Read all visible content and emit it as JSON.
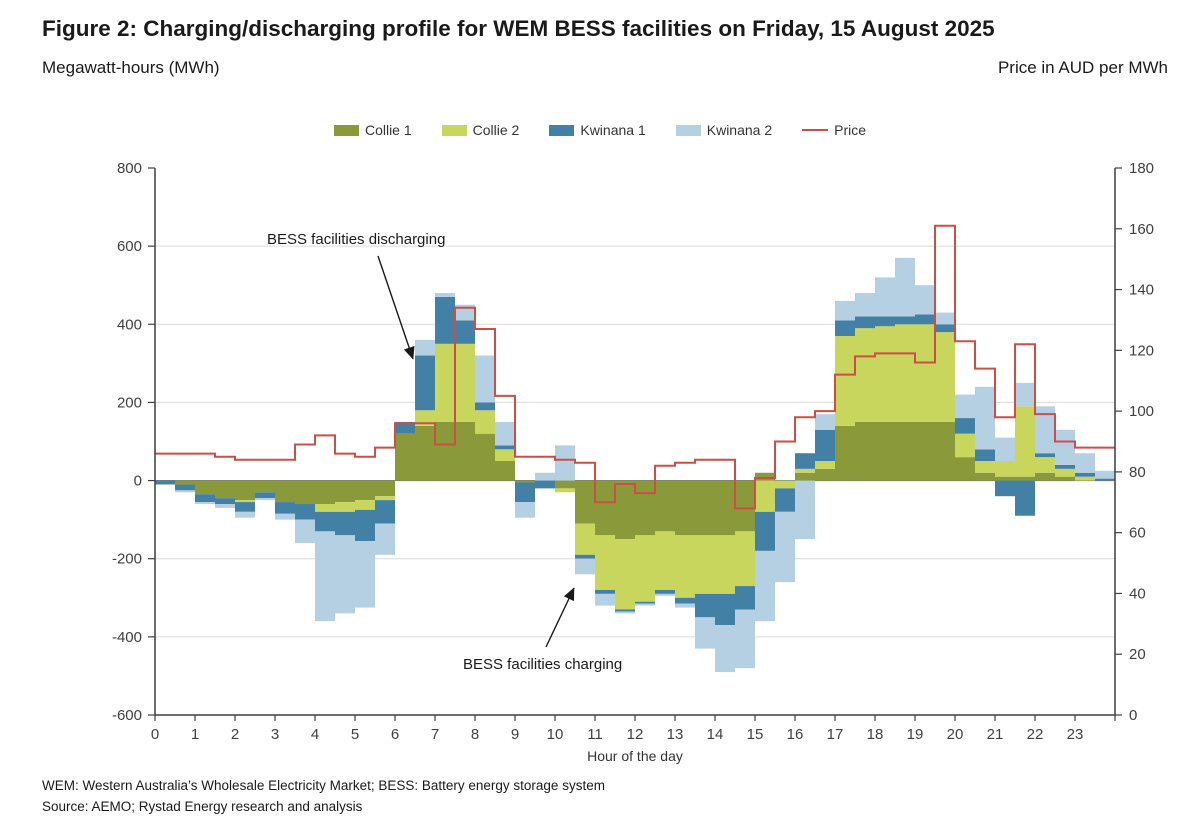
{
  "figure": {
    "title": "Figure 2: Charging/discharging profile for WEM BESS facilities on Friday, 15 August 2025",
    "subtitle_left": "Megawatt-hours (MWh)",
    "subtitle_right": "Price in AUD per MWh",
    "footnote_line1": "WEM: Western Australia’s Wholesale Electricity Market; BESS: Battery energy storage system",
    "footnote_line2": "Source: AEMO; Rystad Energy research and analysis"
  },
  "annotations": {
    "discharging": "BESS facilities discharging",
    "charging": "BESS facilities charging"
  },
  "chart_data": {
    "type": "bar",
    "stacked": true,
    "title": "Figure 2: Charging/discharging profile for WEM BESS facilities on Friday, 15 August 2025",
    "xlabel": "Hour of the day",
    "ylabel_left": "Megawatt-hours (MWh)",
    "ylabel_right": "Price in AUD per MWh",
    "interval_hours": 0.5,
    "x": [
      0,
      0.5,
      1,
      1.5,
      2,
      2.5,
      3,
      3.5,
      4,
      4.5,
      5,
      5.5,
      6,
      6.5,
      7,
      7.5,
      8,
      8.5,
      9,
      9.5,
      10,
      10.5,
      11,
      11.5,
      12,
      12.5,
      13,
      13.5,
      14,
      14.5,
      15,
      15.5,
      16,
      16.5,
      17,
      17.5,
      18,
      18.5,
      19,
      19.5,
      20,
      20.5,
      21,
      21.5,
      22,
      22.5,
      23,
      23.5
    ],
    "xticks": [
      0,
      1,
      2,
      3,
      4,
      5,
      6,
      7,
      8,
      9,
      10,
      11,
      12,
      13,
      14,
      15,
      16,
      17,
      18,
      19,
      20,
      21,
      22,
      23
    ],
    "ylim_left": [
      -600,
      800
    ],
    "yticks_left": [
      800,
      600,
      400,
      200,
      0,
      -200,
      -400,
      -600
    ],
    "ylim_right": [
      0,
      180
    ],
    "yticks_right": [
      180,
      160,
      140,
      120,
      100,
      80,
      60,
      40,
      20,
      0
    ],
    "grid": "horizontal",
    "legend_position": "top",
    "series": [
      {
        "name": "Collie 1",
        "color": "#8a9a3b",
        "values": [
          0,
          -10,
          -35,
          -45,
          -50,
          -30,
          -55,
          -60,
          -60,
          -55,
          -50,
          -40,
          120,
          140,
          150,
          150,
          120,
          50,
          -5,
          0,
          -20,
          -110,
          -140,
          -150,
          -140,
          -130,
          -140,
          -140,
          -140,
          -130,
          20,
          0,
          20,
          30,
          140,
          150,
          150,
          150,
          150,
          150,
          60,
          20,
          10,
          10,
          20,
          10,
          0,
          0
        ]
      },
      {
        "name": "Collie 2",
        "color": "#c8d65e",
        "values": [
          0,
          0,
          0,
          0,
          -5,
          0,
          0,
          0,
          -20,
          -25,
          -25,
          -10,
          0,
          40,
          200,
          200,
          60,
          30,
          0,
          0,
          -10,
          -80,
          -140,
          -180,
          -170,
          -150,
          -160,
          -150,
          -150,
          -140,
          -80,
          -20,
          10,
          20,
          230,
          240,
          245,
          250,
          250,
          230,
          60,
          30,
          40,
          180,
          40,
          20,
          10,
          0
        ]
      },
      {
        "name": "Kwinana 1",
        "color": "#4380a6",
        "values": [
          -10,
          -15,
          -20,
          -15,
          -25,
          -15,
          -30,
          -40,
          -50,
          -60,
          -80,
          -60,
          30,
          140,
          120,
          60,
          20,
          10,
          -50,
          -20,
          0,
          -10,
          -10,
          -5,
          -5,
          -10,
          -15,
          -60,
          -80,
          -60,
          -100,
          -60,
          40,
          80,
          40,
          30,
          25,
          20,
          25,
          20,
          40,
          30,
          -40,
          -90,
          10,
          10,
          10,
          5
        ]
      },
      {
        "name": "Kwinana 2",
        "color": "#b5cfe3",
        "values": [
          0,
          -5,
          -5,
          -10,
          -15,
          -5,
          -15,
          -60,
          -230,
          -200,
          -170,
          -80,
          0,
          40,
          10,
          40,
          120,
          60,
          -40,
          20,
          90,
          -40,
          -30,
          -5,
          -5,
          -5,
          -10,
          -80,
          -120,
          -150,
          -180,
          -180,
          -150,
          40,
          50,
          60,
          100,
          150,
          75,
          30,
          60,
          160,
          60,
          60,
          120,
          90,
          50,
          20
        ]
      }
    ],
    "price": {
      "name": "Price",
      "color": "#cb4f47",
      "axis": "right",
      "values": [
        86,
        86,
        86,
        85,
        84,
        84,
        84,
        89,
        92,
        86,
        85,
        88,
        96,
        96,
        89,
        134,
        127,
        105,
        85,
        85,
        84,
        83,
        70,
        76,
        73,
        82,
        83,
        84,
        84,
        68,
        78,
        90,
        98,
        100,
        112,
        118,
        119,
        119,
        116,
        161,
        123,
        114,
        98,
        122,
        99,
        90,
        88,
        88
      ]
    }
  }
}
